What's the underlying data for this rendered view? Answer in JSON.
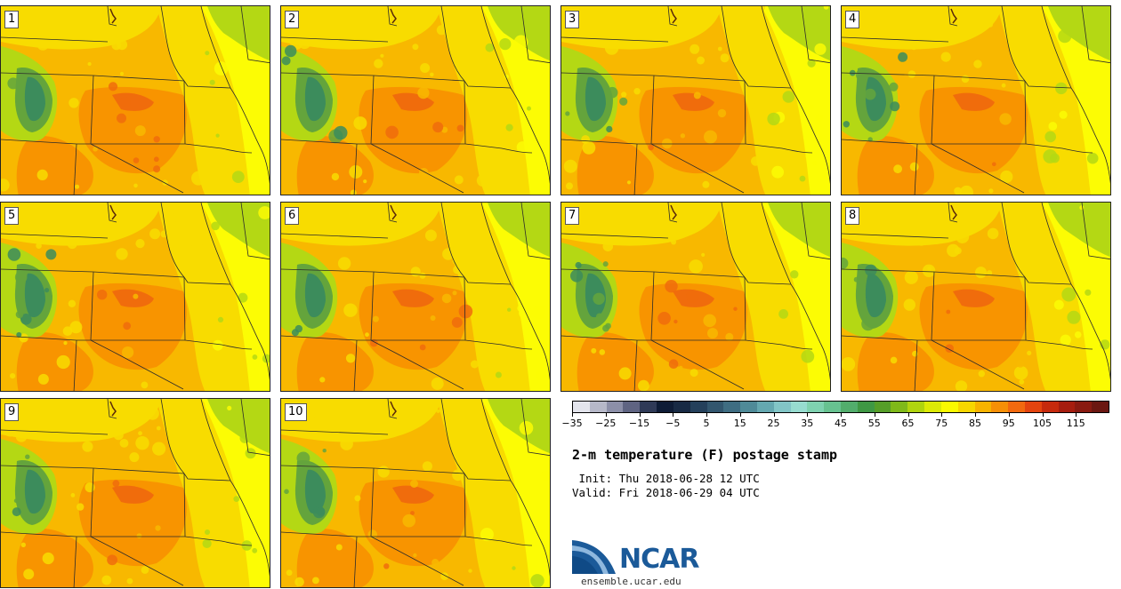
{
  "title": "2-m temperature (F) postage stamp",
  "init_line": " Init: Thu 2018-06-28 12 UTC",
  "valid_line": "Valid: Fri 2018-06-29 04 UTC",
  "site_url": "ensemble.ucar.edu",
  "logo_text": "NCAR",
  "members": [
    {
      "label": "1"
    },
    {
      "label": "2"
    },
    {
      "label": "3"
    },
    {
      "label": "4"
    },
    {
      "label": "5"
    },
    {
      "label": "6"
    },
    {
      "label": "7"
    },
    {
      "label": "8"
    },
    {
      "label": "9"
    },
    {
      "label": "10"
    }
  ],
  "colorbar": {
    "min": -35,
    "max": 120,
    "interval": 5,
    "tick_labels": [
      "−35",
      "−25",
      "−15",
      "−5",
      "5",
      "15",
      "25",
      "35",
      "45",
      "55",
      "65",
      "75",
      "85",
      "95",
      "105",
      "115"
    ],
    "colors": [
      "#e3e4ec",
      "#b6b8c8",
      "#8c8fa8",
      "#5f6482",
      "#2f3a57",
      "#0e1c36",
      "#182a44",
      "#24405b",
      "#32566e",
      "#3f6d82",
      "#4f8a98",
      "#65a8b0",
      "#82c5c6",
      "#97dcd0",
      "#7fd2b0",
      "#67c290",
      "#52ad6c",
      "#3f9844",
      "#569e28",
      "#7fb919",
      "#b0d40e",
      "#dcea05",
      "#fafa00",
      "#f7d600",
      "#f7b300",
      "#f68f06",
      "#f2690e",
      "#e4440e",
      "#c62a0d",
      "#a61d0e",
      "#891a10",
      "#6b1711"
    ]
  },
  "field_colors": {
    "bright_yellow": "#fcfc04",
    "yellow_orange": "#f8dc00",
    "light_orange": "#f8b800",
    "orange": "#f89400",
    "dark_orange": "#f06c0c",
    "lime": "#b4d814",
    "green": "#64a43c",
    "teal_green": "#3c8c5c"
  }
}
